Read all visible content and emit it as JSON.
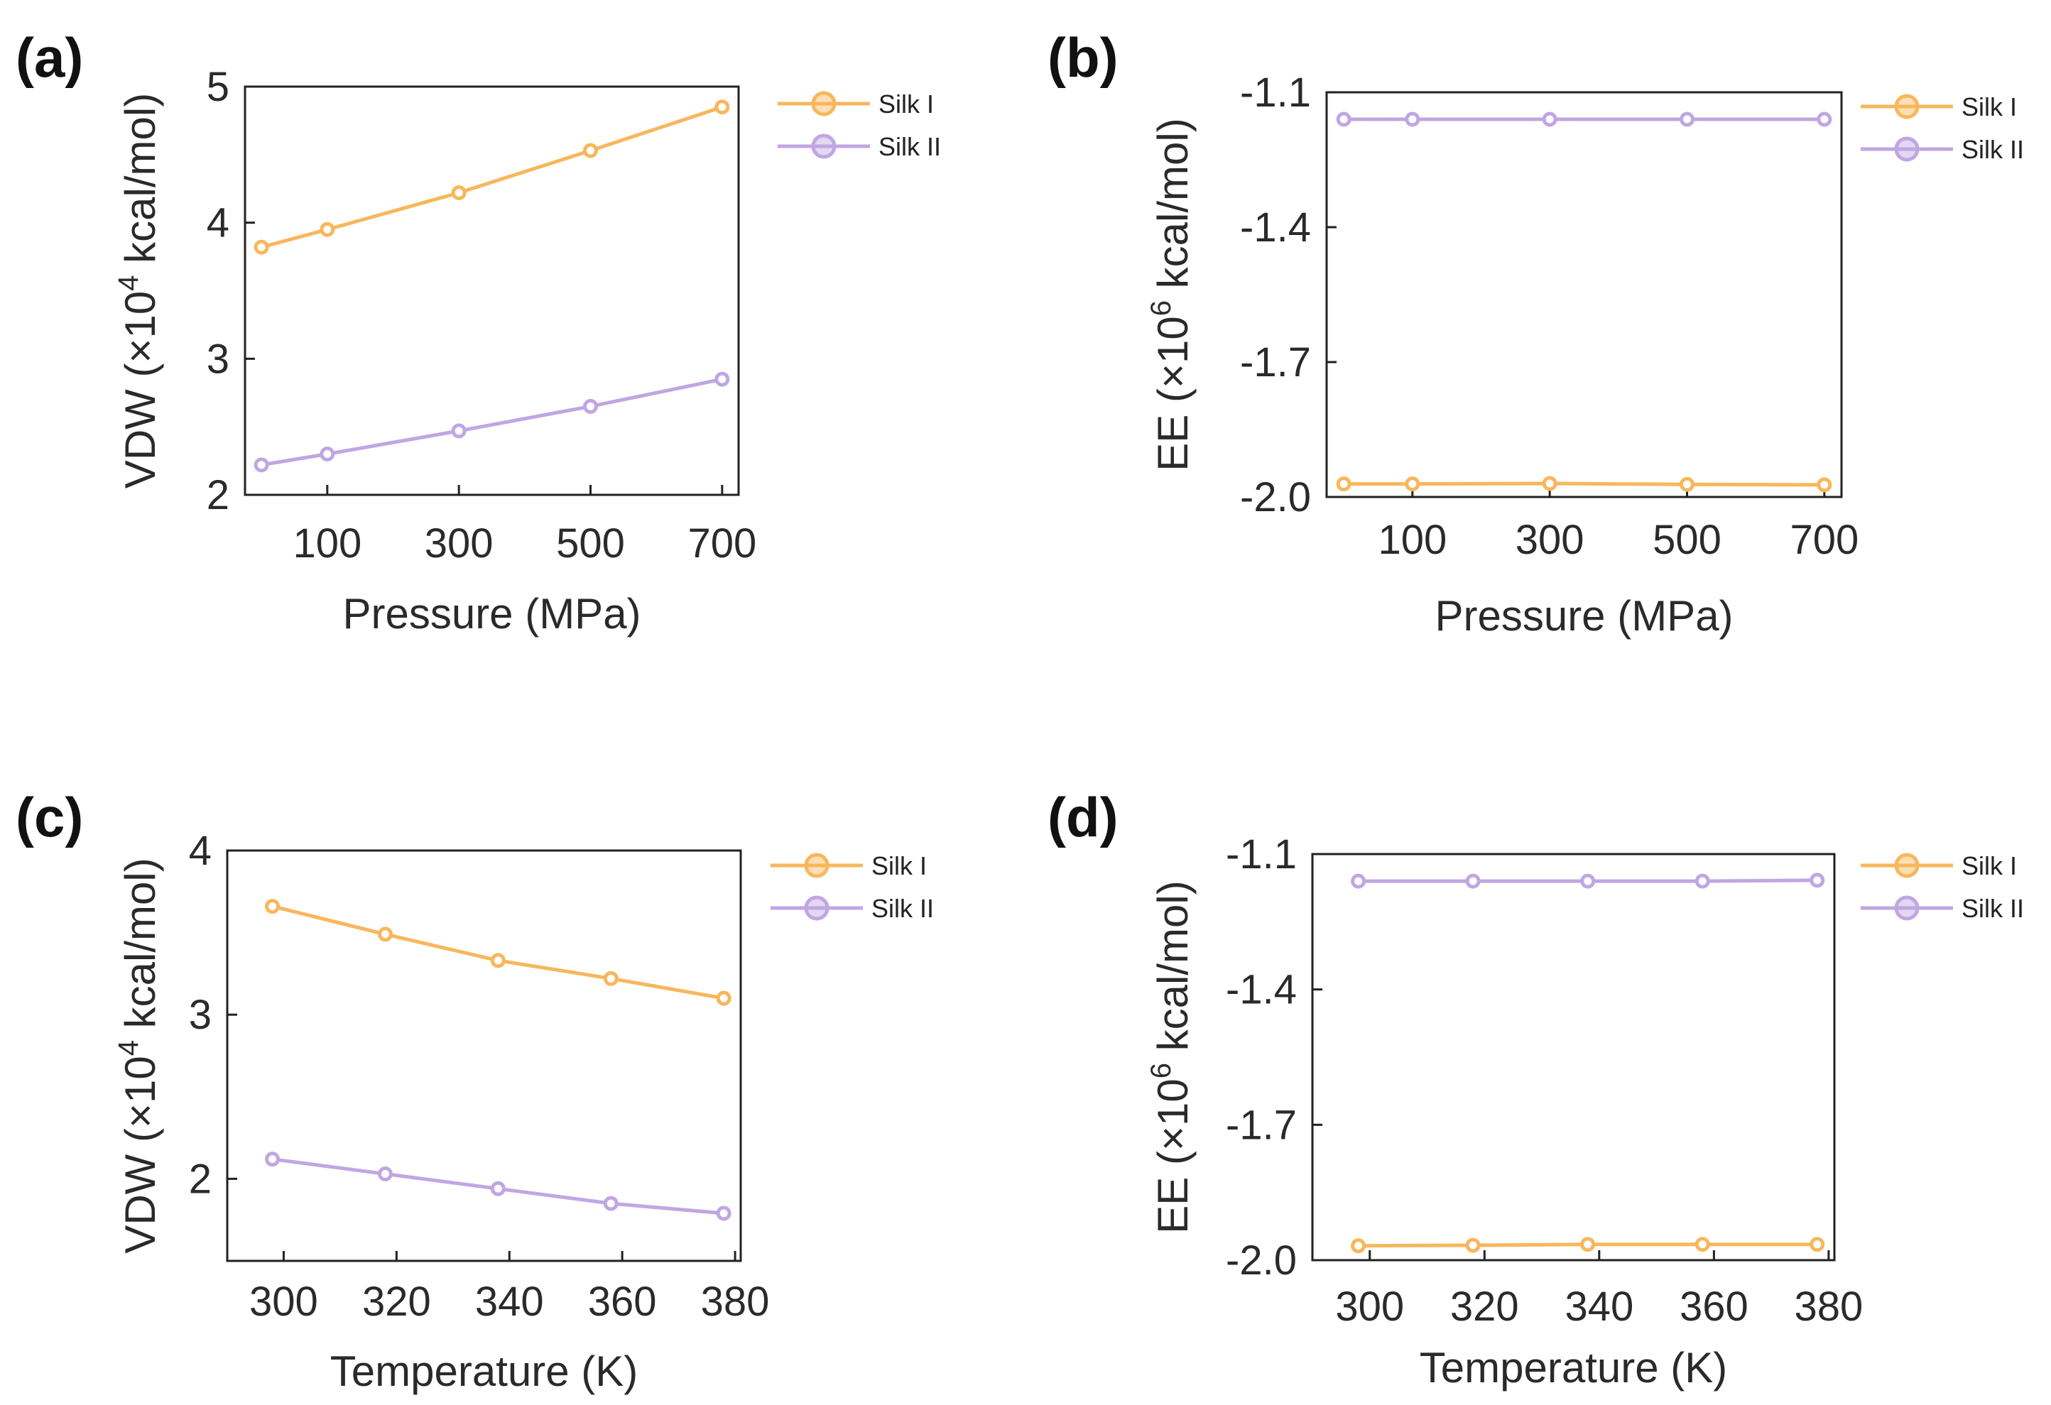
{
  "colors": {
    "silk1": "#F8B75C",
    "silk2": "#C0A6E3"
  },
  "chart_data": [
    {
      "panel_label": "(a)",
      "type": "line",
      "x": [
        0,
        100,
        300,
        500,
        700
      ],
      "xlim": [
        -25,
        725
      ],
      "ylim": [
        2,
        5
      ],
      "xticks": [
        100,
        300,
        500,
        700
      ],
      "xtick_labels": [
        "100",
        "300",
        "500",
        "700"
      ],
      "yticks": [
        2,
        3,
        4,
        5
      ],
      "ytick_labels": [
        "2",
        "3",
        "4",
        "5"
      ],
      "xlabel": "Pressure (MPa)",
      "ylabel_base": "VDW (×10",
      "ylabel_exp": "4",
      "ylabel_unit": " kcal/mol)",
      "legend_position": "right",
      "series": [
        {
          "name": "Silk I",
          "color_key": "silk1",
          "values": [
            3.82,
            3.95,
            4.22,
            4.53,
            4.85
          ]
        },
        {
          "name": "Silk II",
          "color_key": "silk2",
          "values": [
            2.22,
            2.3,
            2.47,
            2.65,
            2.85
          ]
        }
      ]
    },
    {
      "panel_label": "(b)",
      "type": "line",
      "x": [
        0,
        100,
        300,
        500,
        700
      ],
      "xlim": [
        -25,
        725
      ],
      "ylim": [
        -2.0,
        -1.1
      ],
      "xticks": [
        100,
        300,
        500,
        700
      ],
      "xtick_labels": [
        "100",
        "300",
        "500",
        "700"
      ],
      "yticks": [
        -2.0,
        -1.7,
        -1.4,
        -1.1
      ],
      "ytick_labels": [
        "-2.0",
        "-1.7",
        "-1.4",
        "-1.1"
      ],
      "xlabel": "Pressure (MPa)",
      "ylabel_base": "EE (×10",
      "ylabel_exp": "6",
      "ylabel_unit": " kcal/mol)",
      "legend_position": "right",
      "series": [
        {
          "name": "Silk I",
          "color_key": "silk1",
          "values": [
            -1.971,
            -1.971,
            -1.97,
            -1.972,
            -1.973
          ]
        },
        {
          "name": "Silk II",
          "color_key": "silk2",
          "values": [
            -1.16,
            -1.16,
            -1.16,
            -1.16,
            -1.16
          ]
        }
      ]
    },
    {
      "panel_label": "(c)",
      "type": "line",
      "x": [
        298,
        318,
        338,
        358,
        378
      ],
      "xlim": [
        290,
        381
      ],
      "ylim": [
        1.5,
        4
      ],
      "xticks": [
        300,
        320,
        340,
        360,
        380
      ],
      "xtick_labels": [
        "300",
        "320",
        "340",
        "360",
        "380"
      ],
      "yticks": [
        2,
        3,
        4
      ],
      "ytick_labels": [
        "2",
        "3",
        "4"
      ],
      "xlabel": "Temperature (K)",
      "ylabel_base": "VDW (×10",
      "ylabel_exp": "4",
      "ylabel_unit": " kcal/mol)",
      "legend_position": "right",
      "series": [
        {
          "name": "Silk I",
          "color_key": "silk1",
          "values": [
            3.66,
            3.49,
            3.33,
            3.22,
            3.1
          ]
        },
        {
          "name": "Silk II",
          "color_key": "silk2",
          "values": [
            2.12,
            2.03,
            1.94,
            1.85,
            1.79
          ]
        }
      ]
    },
    {
      "panel_label": "(d)",
      "type": "line",
      "x": [
        298,
        318,
        338,
        358,
        378
      ],
      "xlim": [
        290,
        381
      ],
      "ylim": [
        -2.0,
        -1.1
      ],
      "xticks": [
        300,
        320,
        340,
        360,
        380
      ],
      "xtick_labels": [
        "300",
        "320",
        "340",
        "360",
        "380"
      ],
      "yticks": [
        -2.0,
        -1.7,
        -1.4,
        -1.1
      ],
      "ytick_labels": [
        "-2.0",
        "-1.7",
        "-1.4",
        "-1.1"
      ],
      "xlabel": "Temperature (K)",
      "ylabel_base": "EE (×10",
      "ylabel_exp": "6",
      "ylabel_unit": " kcal/mol)",
      "legend_position": "right",
      "series": [
        {
          "name": "Silk I",
          "color_key": "silk1",
          "values": [
            -1.968,
            -1.967,
            -1.965,
            -1.965,
            -1.965
          ]
        },
        {
          "name": "Silk II",
          "color_key": "silk2",
          "values": [
            -1.16,
            -1.16,
            -1.16,
            -1.16,
            -1.158
          ]
        }
      ]
    }
  ]
}
